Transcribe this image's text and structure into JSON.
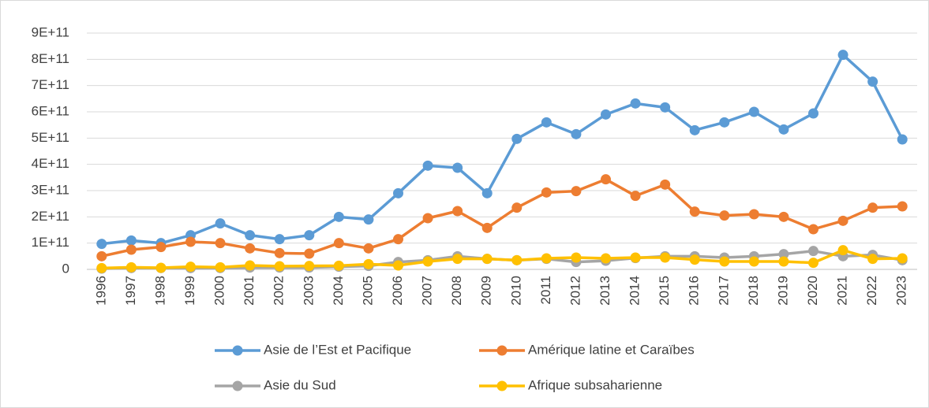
{
  "chart_data": {
    "type": "line",
    "categories": [
      "1996",
      "1997",
      "1998",
      "1999",
      "2000",
      "2001",
      "2002",
      "2003",
      "2004",
      "2005",
      "2006",
      "2007",
      "2008",
      "2009",
      "2010",
      "2011",
      "2012",
      "2013",
      "2014",
      "2015",
      "2016",
      "2017",
      "2018",
      "2019",
      "2020",
      "2021",
      "2022",
      "2023"
    ],
    "series": [
      {
        "name": "Asie de l’Est et Pacifique",
        "color": "#5b9bd5",
        "values": [
          97000000000.0,
          110000000000.0,
          100000000000.0,
          130000000000.0,
          175000000000.0,
          130000000000.0,
          115000000000.0,
          130000000000.0,
          200000000000.0,
          190000000000.0,
          290000000000.0,
          395000000000.0,
          387000000000.0,
          290000000000.0,
          497000000000.0,
          560000000000.0,
          515000000000.0,
          590000000000.0,
          632000000000.0,
          617000000000.0,
          530000000000.0,
          560000000000.0,
          600000000000.0,
          533000000000.0,
          594000000000.0,
          817000000000.0,
          715000000000.0,
          495000000000.0
        ]
      },
      {
        "name": "Amérique latine et Caraïbes",
        "color": "#ed7d31",
        "values": [
          50000000000.0,
          75000000000.0,
          85000000000.0,
          105000000000.0,
          100000000000.0,
          80000000000.0,
          62000000000.0,
          60000000000.0,
          100000000000.0,
          80000000000.0,
          115000000000.0,
          195000000000.0,
          222000000000.0,
          158000000000.0,
          235000000000.0,
          293000000000.0,
          298000000000.0,
          343000000000.0,
          280000000000.0,
          323000000000.0,
          220000000000.0,
          205000000000.0,
          210000000000.0,
          200000000000.0,
          153000000000.0,
          185000000000.0,
          235000000000.0,
          240000000000.0
        ]
      },
      {
        "name": "Asie du Sud",
        "color": "#a5a5a5",
        "values": [
          3000000000.0,
          5000000000.0,
          5000000000.0,
          5000000000.0,
          5000000000.0,
          7000000000.0,
          7000000000.0,
          7000000000.0,
          10000000000.0,
          13000000000.0,
          28000000000.0,
          35000000000.0,
          50000000000.0,
          40000000000.0,
          35000000000.0,
          40000000000.0,
          28000000000.0,
          33000000000.0,
          43000000000.0,
          50000000000.0,
          50000000000.0,
          45000000000.0,
          50000000000.0,
          58000000000.0,
          70000000000.0,
          50000000000.0,
          55000000000.0,
          35000000000.0
        ]
      },
      {
        "name": "Afrique subsaharienne",
        "color": "#ffc000",
        "values": [
          5000000000.0,
          8000000000.0,
          6000000000.0,
          10000000000.0,
          8000000000.0,
          15000000000.0,
          12000000000.0,
          13000000000.0,
          14000000000.0,
          20000000000.0,
          15000000000.0,
          30000000000.0,
          40000000000.0,
          40000000000.0,
          35000000000.0,
          42000000000.0,
          45000000000.0,
          42000000000.0,
          45000000000.0,
          45000000000.0,
          37000000000.0,
          30000000000.0,
          30000000000.0,
          30000000000.0,
          25000000000.0,
          73000000000.0,
          40000000000.0,
          42000000000.0
        ]
      }
    ],
    "ylim": [
      0,
      900000000000.0
    ],
    "yticks": [
      0,
      {
        "value": 100000000000.0,
        "label": "1E+11"
      },
      {
        "value": 200000000000.0,
        "label": "2E+11"
      },
      {
        "value": 300000000000.0,
        "label": "3E+11"
      },
      {
        "value": 400000000000.0,
        "label": "4E+11"
      },
      {
        "value": 500000000000.0,
        "label": "5E+11"
      },
      {
        "value": 600000000000.0,
        "label": "6E+11"
      },
      {
        "value": 700000000000.0,
        "label": "7E+11"
      },
      {
        "value": 800000000000.0,
        "label": "8E+11"
      },
      {
        "value": 900000000000.0,
        "label": "9E+11"
      }
    ],
    "grid": true,
    "legend": "bottom"
  }
}
